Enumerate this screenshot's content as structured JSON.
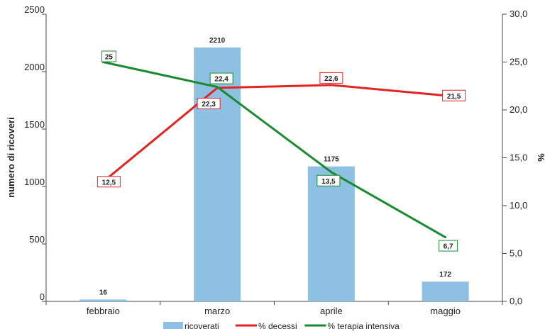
{
  "chart_data": {
    "type": "bar",
    "categories": [
      "febbraio",
      "marzo",
      "aprile",
      "maggio"
    ],
    "y_left": {
      "label": "numero di ricoveri",
      "lim": [
        0,
        2500
      ],
      "ticks": [
        "0",
        "500",
        "1000",
        "1500",
        "2000",
        "2500"
      ]
    },
    "y_right": {
      "label": "%",
      "lim": [
        0,
        30
      ],
      "ticks": [
        "0,0",
        "5,0",
        "10,0",
        "15,0",
        "20,0",
        "25,0",
        "30,0"
      ]
    },
    "grid": false,
    "legend_position": "bottom",
    "series": [
      {
        "name": "ricoverati",
        "kind": "bar",
        "axis": "left",
        "color": "#8ec0e4",
        "values": [
          16,
          2210,
          1175,
          172
        ],
        "labels": [
          "16",
          "2210",
          "1175",
          "172"
        ]
      },
      {
        "name": "% decessi",
        "kind": "line",
        "axis": "right",
        "color": "#e32222",
        "values": [
          12.5,
          22.3,
          22.6,
          21.5
        ],
        "labels": [
          "12,5",
          "22,3",
          "22,6",
          "21,5"
        ]
      },
      {
        "name": "% terapia intensiva",
        "kind": "line",
        "axis": "right",
        "color": "#1a8a2e",
        "values": [
          25,
          22.4,
          13.5,
          6.7
        ],
        "labels": [
          "25",
          "22,4",
          "13,5",
          "6,7"
        ]
      }
    ]
  }
}
